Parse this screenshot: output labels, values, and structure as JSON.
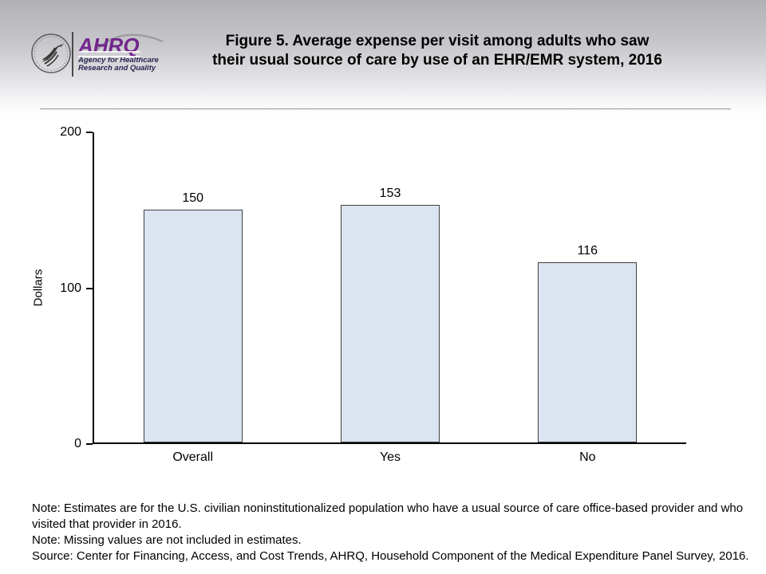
{
  "header": {
    "logo": {
      "acronym": "AHRQ",
      "tagline_line1": "Agency for Healthcare",
      "tagline_line2": "Research and Quality",
      "acronym_color": "#72268c",
      "tagline_color": "#26244f"
    },
    "title": "Figure 5. Average expense per visit among adults who saw\ntheir usual source of care by use of an EHR/EMR system, 2016"
  },
  "chart_data": {
    "type": "bar",
    "title": "",
    "categories": [
      "Overall",
      "Yes",
      "No"
    ],
    "values": [
      150,
      153,
      116
    ],
    "xlabel": "",
    "ylabel": "Dollars",
    "ylim": [
      0,
      200
    ],
    "yticks": [
      0,
      100,
      200
    ],
    "grid": false,
    "legend": null,
    "bar_fill": "#dbe5f1",
    "bar_border": "#404040"
  },
  "notes": [
    "Note: Estimates are for the U.S. civilian noninstitutionalized population who have a usual source of care office-based provider and who\nvisited that provider in 2016.",
    "Note: Missing values are not included in estimates.",
    "Source: Center for Financing, Access, and Cost Trends, AHRQ, Household Component of the Medical Expenditure Panel Survey, 2016."
  ]
}
